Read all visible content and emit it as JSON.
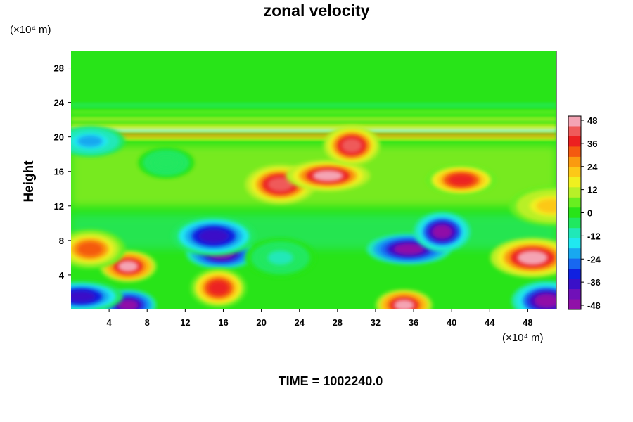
{
  "chart_data": {
    "type": "heatmap",
    "title": "zonal velocity",
    "ylabel": "Height",
    "y_unit": "(×10⁴ m)",
    "x_unit": "(×10⁴ m)",
    "xlim": [
      0,
      51
    ],
    "ylim": [
      0,
      30
    ],
    "x_ticks": [
      "4",
      "8",
      "12",
      "16",
      "20",
      "24",
      "28",
      "32",
      "36",
      "40",
      "44",
      "48"
    ],
    "y_ticks": [
      "4",
      "8",
      "12",
      "16",
      "20",
      "24",
      "28"
    ],
    "colorbar": {
      "range": [
        -48,
        48
      ],
      "ticks": [
        "48",
        "36",
        "24",
        "12",
        "0",
        "-12",
        "-24",
        "-36",
        "-48"
      ],
      "colors_high_to_low": [
        "#f4a4b4",
        "#ef5a5a",
        "#ec2020",
        "#f45a10",
        "#fa9a10",
        "#fcc818",
        "#f0f020",
        "#b8f028",
        "#68ee20",
        "#28e418",
        "#20e860",
        "#20e8b8",
        "#20e8f0",
        "#18a8f0",
        "#1868f0",
        "#1020e0",
        "#3a10c8",
        "#7010b8",
        "#9010a8"
      ]
    },
    "features": [
      {
        "x": 6,
        "y": 5,
        "value": 48
      },
      {
        "x": 22,
        "y": 14.5,
        "value": 45
      },
      {
        "x": 27,
        "y": 15.5,
        "value": 46
      },
      {
        "x": 29.5,
        "y": 19,
        "value": 44
      },
      {
        "x": 41,
        "y": 15,
        "value": 38
      },
      {
        "x": 48.5,
        "y": 6,
        "value": 46
      },
      {
        "x": 35,
        "y": 0.5,
        "value": 48
      },
      {
        "x": 2,
        "y": 7,
        "value": 30
      },
      {
        "x": 35.5,
        "y": 7,
        "value": -48
      },
      {
        "x": 39,
        "y": 9,
        "value": -46
      },
      {
        "x": 15.8,
        "y": 6.5,
        "value": -47
      },
      {
        "x": 15,
        "y": 8.5,
        "value": -38
      },
      {
        "x": 6,
        "y": 0.5,
        "value": -48
      },
      {
        "x": 50,
        "y": 1,
        "value": -46
      },
      {
        "x": 1,
        "y": 1.5,
        "value": -40
      },
      {
        "x": 15.5,
        "y": 2.5,
        "value": 38
      },
      {
        "x": 2,
        "y": 19.5,
        "value": -22
      },
      {
        "x": 50.5,
        "y": 12,
        "value": 20
      },
      {
        "x": 10,
        "y": 17,
        "value": -8
      },
      {
        "x": 22,
        "y": 6,
        "value": -10
      }
    ]
  },
  "footer": "TIME = 1002240.0"
}
